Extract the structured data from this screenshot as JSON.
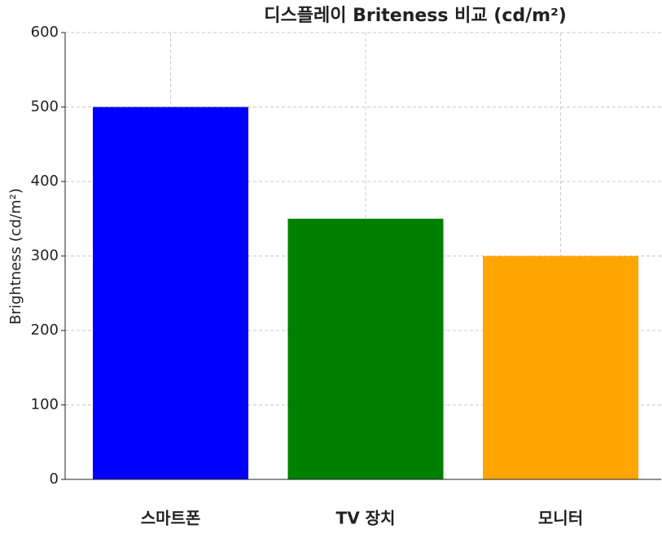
{
  "chart_data": {
    "type": "bar",
    "title": "디스플레이 Briteness 비교 (cd/m²)",
    "ylabel": "Brightness (cd/m²)",
    "categories": [
      "스마트폰",
      "TV 장치",
      "모니터"
    ],
    "values": [
      500,
      350,
      300
    ],
    "colors": [
      "#0000ff",
      "#008000",
      "#ffa500"
    ],
    "ylim": [
      0,
      600
    ],
    "yticks": [
      0,
      100,
      200,
      300,
      400,
      500,
      600
    ],
    "grid": true
  }
}
